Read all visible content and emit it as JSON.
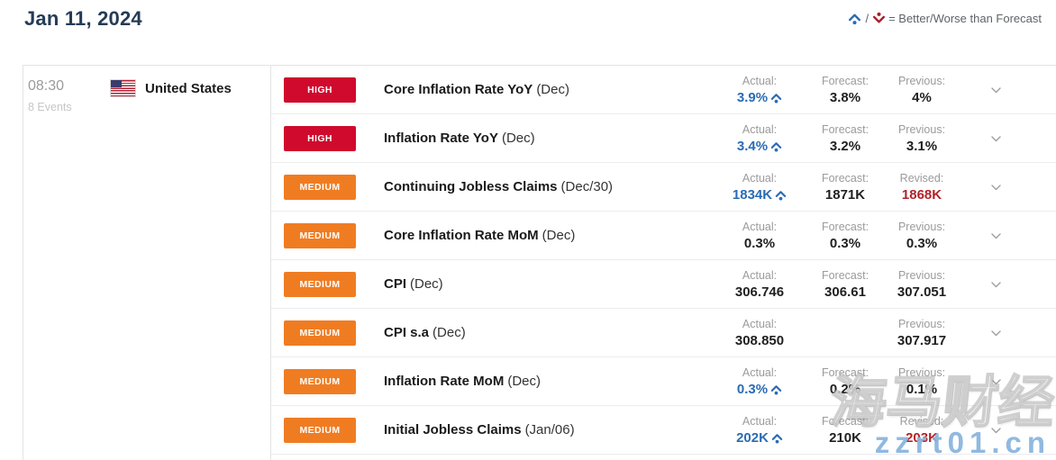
{
  "header": {
    "date": "Jan 11, 2024"
  },
  "legend": {
    "separator": "/",
    "text": "= Better/Worse than Forecast"
  },
  "group": {
    "time": "08:30",
    "events_count": "8 Events",
    "country": "United States"
  },
  "colors": {
    "better": "#2a6cb5",
    "worse": "#b22229",
    "high": "#cf0a2c",
    "medium": "#f07c22",
    "navy": "#253b56"
  },
  "rows": [
    {
      "impact": "HIGH",
      "title": "Core Inflation Rate YoY",
      "period": "(Dec)",
      "cells": [
        {
          "label": "Actual:",
          "value": "3.9%",
          "state": "better"
        },
        {
          "label": "Forecast:",
          "value": "3.8%",
          "state": "normal"
        },
        {
          "label": "Previous:",
          "value": "4%",
          "state": "normal"
        }
      ]
    },
    {
      "impact": "HIGH",
      "title": "Inflation Rate YoY",
      "period": "(Dec)",
      "cells": [
        {
          "label": "Actual:",
          "value": "3.4%",
          "state": "better"
        },
        {
          "label": "Forecast:",
          "value": "3.2%",
          "state": "normal"
        },
        {
          "label": "Previous:",
          "value": "3.1%",
          "state": "normal"
        }
      ]
    },
    {
      "impact": "MEDIUM",
      "title": "Continuing Jobless Claims",
      "period": "(Dec/30)",
      "cells": [
        {
          "label": "Actual:",
          "value": "1834K",
          "state": "better"
        },
        {
          "label": "Forecast:",
          "value": "1871K",
          "state": "normal"
        },
        {
          "label": "Revised:",
          "value": "1868K",
          "state": "revised"
        }
      ]
    },
    {
      "impact": "MEDIUM",
      "title": "Core Inflation Rate MoM",
      "period": "(Dec)",
      "cells": [
        {
          "label": "Actual:",
          "value": "0.3%",
          "state": "normal"
        },
        {
          "label": "Forecast:",
          "value": "0.3%",
          "state": "normal"
        },
        {
          "label": "Previous:",
          "value": "0.3%",
          "state": "normal"
        }
      ]
    },
    {
      "impact": "MEDIUM",
      "title": "CPI",
      "period": "(Dec)",
      "cells": [
        {
          "label": "Actual:",
          "value": "306.746",
          "state": "normal"
        },
        {
          "label": "Forecast:",
          "value": "306.61",
          "state": "normal"
        },
        {
          "label": "Previous:",
          "value": "307.051",
          "state": "normal"
        }
      ]
    },
    {
      "impact": "MEDIUM",
      "title": "CPI s.a",
      "period": "(Dec)",
      "cells": [
        {
          "label": "Actual:",
          "value": "308.850",
          "state": "normal"
        },
        {
          "label": "",
          "value": "",
          "state": "empty"
        },
        {
          "label": "Previous:",
          "value": "307.917",
          "state": "normal"
        }
      ]
    },
    {
      "impact": "MEDIUM",
      "title": "Inflation Rate MoM",
      "period": "(Dec)",
      "cells": [
        {
          "label": "Actual:",
          "value": "0.3%",
          "state": "better"
        },
        {
          "label": "Forecast:",
          "value": "0.2%",
          "state": "normal"
        },
        {
          "label": "Previous:",
          "value": "0.1%",
          "state": "normal"
        }
      ]
    },
    {
      "impact": "MEDIUM",
      "title": "Initial Jobless Claims",
      "period": "(Jan/06)",
      "cells": [
        {
          "label": "Actual:",
          "value": "202K",
          "state": "better"
        },
        {
          "label": "Forecast:",
          "value": "210K",
          "state": "normal"
        },
        {
          "label": "Revised:",
          "value": "203K",
          "state": "revised"
        }
      ]
    }
  ],
  "watermark": {
    "title": "海马财经",
    "site": "zzrt01.cn"
  }
}
